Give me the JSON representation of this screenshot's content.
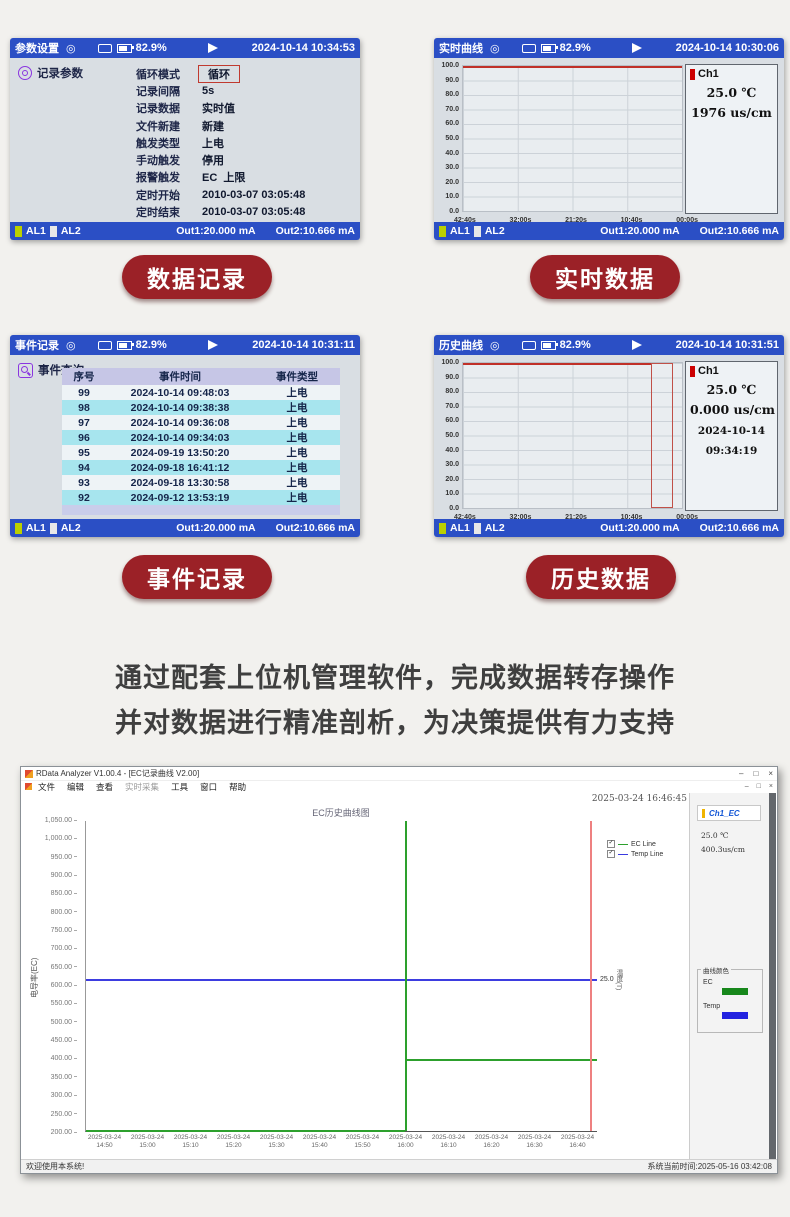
{
  "page": {
    "background": "#f2f1ee"
  },
  "pills": {
    "data_record": "数据记录",
    "realtime_data": "实时数据",
    "event_record": "事件记录",
    "history_data": "历史数据"
  },
  "description": {
    "line1": "通过配套上位机管理软件，完成数据转存操作",
    "line2": "并对数据进行精准剖析，为决策提供有力支持"
  },
  "device_common": {
    "battery_pct": "82.9%",
    "al1": "AL1",
    "al2": "AL2",
    "out1": "Out1:20.000 mA",
    "out2": "Out2:10.666 mA",
    "y_ticks": [
      "100.0",
      "90.0",
      "80.0",
      "70.0",
      "60.0",
      "50.0",
      "40.0",
      "30.0",
      "20.0",
      "10.0",
      "0.0"
    ],
    "x_ticks": [
      "42:40s",
      "32:00s",
      "21:20s",
      "10:40s",
      "00:00s"
    ]
  },
  "panel_param": {
    "title": "参数设置",
    "datetime": "2024-10-14 10:34:53",
    "section": "记录参数",
    "fields": [
      {
        "label": "循环模式",
        "value": "循环"
      },
      {
        "label": "记录间隔",
        "value": "5s"
      },
      {
        "label": "记录数据",
        "value": "实时值"
      },
      {
        "label": "文件新建",
        "value": "新建"
      },
      {
        "label": "触发类型",
        "value": "上电"
      },
      {
        "label": "手动触发",
        "value": "停用"
      },
      {
        "label": "报警触发",
        "value": "EC  上限"
      },
      {
        "label": "定时开始",
        "value": "2010-03-07 03:05:48"
      },
      {
        "label": "定时结束",
        "value": "2010-03-07 03:05:48"
      }
    ]
  },
  "panel_realtime": {
    "title": "实时曲线",
    "datetime": "2024-10-14 10:30:06",
    "info": {
      "ch": "Ch1",
      "temp": "25.0 ℃",
      "ec": "1976 us/cm"
    }
  },
  "panel_event": {
    "title": "事件记录",
    "datetime": "2024-10-14 10:31:11",
    "section": "事件查询",
    "table": {
      "headers": [
        "序号",
        "事件时间",
        "事件类型"
      ],
      "rows": [
        [
          "99",
          "2024-10-14 09:48:03",
          "上电"
        ],
        [
          "98",
          "2024-10-14 09:38:38",
          "上电"
        ],
        [
          "97",
          "2024-10-14 09:36:08",
          "上电"
        ],
        [
          "96",
          "2024-10-14 09:34:03",
          "上电"
        ],
        [
          "95",
          "2024-09-19 13:50:20",
          "上电"
        ],
        [
          "94",
          "2024-09-18 16:41:12",
          "上电"
        ],
        [
          "93",
          "2024-09-18 13:30:58",
          "上电"
        ],
        [
          "92",
          "2024-09-12 13:53:19",
          "上电"
        ]
      ]
    }
  },
  "panel_history": {
    "title": "历史曲线",
    "datetime": "2024-10-14 10:31:51",
    "info": {
      "ch": "Ch1",
      "temp": "25.0 ℃",
      "ec": "0.000 us/cm",
      "date": "2024-10-14",
      "time": "09:34:19"
    }
  },
  "software": {
    "window_title": "RData Analyzer V1.00.4 - [EC记录曲线 V2.00]",
    "menu": [
      "文件",
      "编辑",
      "查看",
      "实时采集",
      "工具",
      "窗口",
      "帮助"
    ],
    "window_controls": [
      "–",
      "□",
      "×"
    ],
    "mdi_controls": [
      "–",
      "□",
      "×"
    ],
    "snapshot_time": "2025-03-24 16:46:45",
    "chart_title": "EC历史曲线图",
    "legend": [
      {
        "label": "EC Line",
        "color": "#2da02d"
      },
      {
        "label": "Temp Line",
        "color": "#3a3ae0"
      }
    ],
    "y_axis_label": "电导率(EC)",
    "y_ticks": [
      "1,050.00",
      "1,000.00",
      "950.00",
      "900.00",
      "850.00",
      "800.00",
      "750.00",
      "700.00",
      "650.00",
      "600.00",
      "550.00",
      "500.00",
      "450.00",
      "400.00",
      "350.00",
      "300.00",
      "250.00",
      "200.00"
    ],
    "x_ticks": [
      {
        "date": "2025-03-24",
        "time": "14:50"
      },
      {
        "date": "2025-03-24",
        "time": "15:00"
      },
      {
        "date": "2025-03-24",
        "time": "15:10"
      },
      {
        "date": "2025-03-24",
        "time": "15:20"
      },
      {
        "date": "2025-03-24",
        "time": "15:30"
      },
      {
        "date": "2025-03-24",
        "time": "15:40"
      },
      {
        "date": "2025-03-24",
        "time": "15:50"
      },
      {
        "date": "2025-03-24",
        "time": "16:00"
      },
      {
        "date": "2025-03-24",
        "time": "16:10"
      },
      {
        "date": "2025-03-24",
        "time": "16:20"
      },
      {
        "date": "2025-03-24",
        "time": "16:30"
      },
      {
        "date": "2025-03-24",
        "time": "16:40"
      }
    ],
    "right_axis_value": "25.0",
    "right_axis_label": "温度(T)",
    "channel": {
      "name": "Ch1_EC",
      "temp": "25.0 ℃",
      "ec": "400.3us/cm"
    },
    "color_legend": {
      "title": "曲线颜色",
      "items": [
        {
          "label": "EC",
          "color": "#17871b"
        },
        {
          "label": "Temp",
          "color": "#2222e0"
        }
      ]
    },
    "status_left": "欢迎使用本系统!",
    "status_right": "系统当前时间:2025-05-16 03:42:08"
  },
  "chart_data": [
    {
      "type": "line",
      "title": "实时曲线 (device real-time curve)",
      "ylim": [
        0,
        100
      ],
      "y_ticks": [
        100,
        90,
        80,
        70,
        60,
        50,
        40,
        30,
        20,
        10,
        0
      ],
      "x_ticks": [
        "42:40s",
        "32:00s",
        "21:20s",
        "10:40s",
        "00:00s"
      ],
      "series": [
        {
          "name": "Ch1 EC",
          "value_now": "1976 us/cm",
          "points": [
            [
              "42:40s",
              100
            ],
            [
              "00:00s",
              100
            ]
          ],
          "note": "flat red trace clipped at top of scale"
        }
      ]
    },
    {
      "type": "line",
      "title": "历史曲线 (device history curve)",
      "ylim": [
        0,
        100
      ],
      "x_ticks": [
        "42:40s",
        "32:00s",
        "21:20s",
        "10:40s",
        "00:00s"
      ],
      "series": [
        {
          "name": "Ch1 EC",
          "value_now": "0.000 us/cm",
          "points": [
            [
              "42:40s",
              100
            ],
            [
              "~06:00s",
              100
            ],
            [
              "~06:00s",
              0
            ]
          ],
          "note": "flat at top then drops inside red cursor band near 10:40s–00:00s"
        }
      ],
      "cursor": {
        "date": "2024-10-14",
        "time": "09:34:19"
      }
    },
    {
      "type": "line",
      "title": "EC历史曲线图",
      "ylabel": "电导率(EC)",
      "right_ylabel": "温度(T)",
      "ylim": [
        200,
        1050
      ],
      "y_step": 50,
      "x": [
        "14:50",
        "15:00",
        "15:10",
        "15:20",
        "15:30",
        "15:40",
        "15:50",
        "16:00",
        "16:10",
        "16:20",
        "16:30",
        "16:40"
      ],
      "legend_position": "top-right",
      "series": [
        {
          "name": "EC Line",
          "color": "#2da02d",
          "points": [
            [
              "14:50",
              200
            ],
            [
              "16:00",
              200
            ],
            [
              "16:00",
              1050
            ],
            [
              "16:00",
              400.3
            ],
            [
              "16:40",
              400.3
            ]
          ]
        },
        {
          "name": "Temp Line",
          "color": "#3a3ae0",
          "points": [
            [
              "14:50",
              617
            ],
            [
              "16:40",
              617
            ]
          ],
          "right_axis_value": 25.0
        }
      ],
      "cursor_time": "2025-03-24 16:46:45"
    }
  ]
}
